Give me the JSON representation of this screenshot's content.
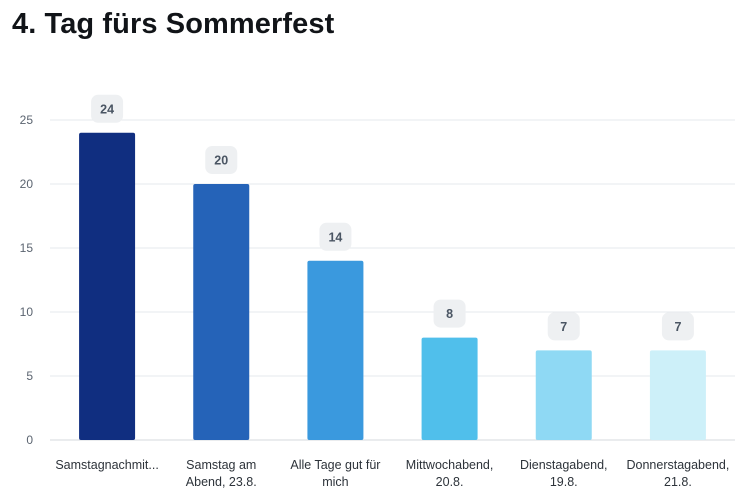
{
  "title": "4. Tag fürs Sommerfest",
  "chart_data": {
    "type": "bar",
    "title": "4. Tag fürs Sommerfest",
    "categories": [
      [
        "Samstagnachmit..."
      ],
      [
        "Samstag am",
        "Abend, 23.8."
      ],
      [
        "Alle Tage gut für",
        "mich"
      ],
      [
        "Mittwochabend,",
        "20.8."
      ],
      [
        "Dienstagabend,",
        "19.8."
      ],
      [
        "Donnerstagabend,",
        "21.8."
      ]
    ],
    "values": [
      24,
      20,
      14,
      8,
      7,
      7
    ],
    "colors": [
      "#102e80",
      "#2563b8",
      "#3a99de",
      "#50bfeb",
      "#8fd9f4",
      "#cdf0f9"
    ],
    "ylim": [
      0,
      25
    ],
    "yticks": [
      0,
      5,
      10,
      15,
      20,
      25
    ],
    "grid": true,
    "xlabel": "",
    "ylabel": ""
  }
}
